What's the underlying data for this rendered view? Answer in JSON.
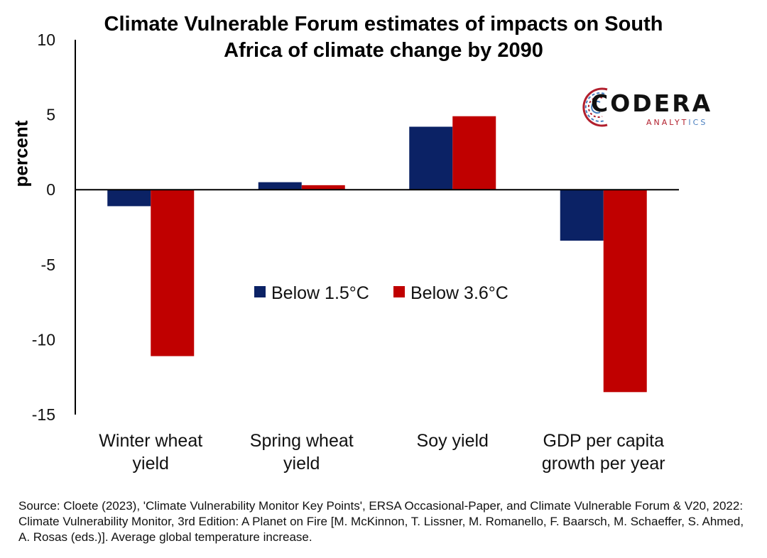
{
  "chart_data": {
    "type": "bar",
    "title": "Climate Vulnerable Forum estimates of impacts on South Africa of climate change by 2090",
    "title_lines": [
      "Climate Vulnerable Forum estimates of impacts on South",
      "Africa of climate change by 2090"
    ],
    "ylabel": "percent",
    "xlabel": "",
    "ylim": [
      -15,
      10
    ],
    "yticks": [
      10,
      5,
      0,
      -5,
      -10,
      -15
    ],
    "grid": false,
    "legend_position": "center",
    "categories": [
      [
        "Winter wheat",
        "yield"
      ],
      [
        "Spring wheat",
        "yield"
      ],
      [
        "Soy yield"
      ],
      [
        "GDP per capita",
        "growth per year"
      ]
    ],
    "series": [
      {
        "name": "Below 1.5°C",
        "color": "#0b2265",
        "values": [
          -1.1,
          0.5,
          4.2,
          -3.4
        ]
      },
      {
        "name": "Below 3.6°C",
        "color": "#c00000",
        "values": [
          -11.1,
          0.3,
          4.9,
          -13.5
        ]
      }
    ]
  },
  "logo": {
    "word": "CODERA",
    "sub_main": "ANALYT",
    "sub_tail": "ICS"
  },
  "source": "Source: Cloete (2023), 'Climate Vulnerability Monitor Key Points', ERSA Occasional-Paper, and Climate Vulnerable Forum & V20, 2022: Climate Vulnerability Monitor, 3rd Edition: A Planet on Fire [M. McKinnon, T. Lissner, M. Romanello, F. Baarsch, M. Schaeffer, S. Ahmed, A. Rosas (eds.)]. Average global temperature increase."
}
